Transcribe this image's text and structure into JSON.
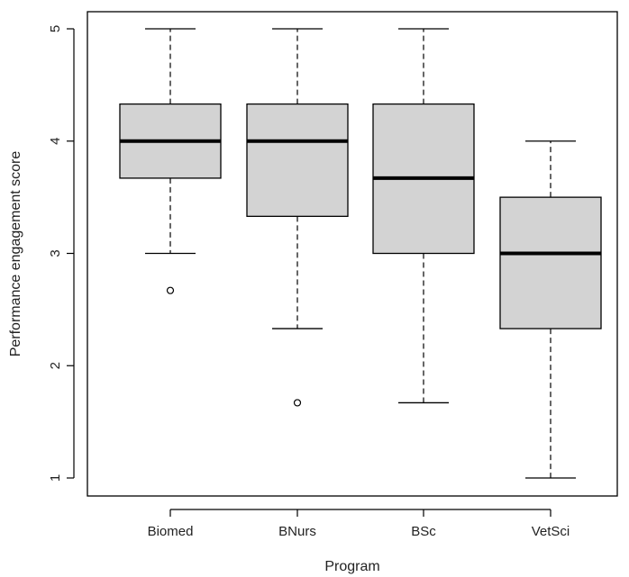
{
  "chart_data": {
    "type": "boxplot",
    "xlabel": "Program",
    "ylabel": "Performance engagement score",
    "ylim": [
      1,
      5
    ],
    "y_ticks": [
      "1",
      "2",
      "3",
      "4",
      "5"
    ],
    "grid": false,
    "colors": {
      "box_fill": "#d3d3d3",
      "stroke": "#000000",
      "background": "#ffffff"
    },
    "categories": [
      "Biomed",
      "BNurs",
      "BSc",
      "VetSci"
    ],
    "boxes": [
      {
        "category": "Biomed",
        "whisker_low": 3.0,
        "q1": 3.67,
        "median": 4.0,
        "q3": 4.33,
        "whisker_high": 5.0,
        "outliers": [
          2.67
        ]
      },
      {
        "category": "BNurs",
        "whisker_low": 2.33,
        "q1": 3.33,
        "median": 4.0,
        "q3": 4.33,
        "whisker_high": 5.0,
        "outliers": [
          1.67
        ]
      },
      {
        "category": "BSc",
        "whisker_low": 1.67,
        "q1": 3.0,
        "median": 3.67,
        "q3": 4.33,
        "whisker_high": 5.0,
        "outliers": []
      },
      {
        "category": "VetSci",
        "whisker_low": 1.0,
        "q1": 2.33,
        "median": 3.0,
        "q3": 3.5,
        "whisker_high": 4.0,
        "outliers": []
      }
    ]
  }
}
